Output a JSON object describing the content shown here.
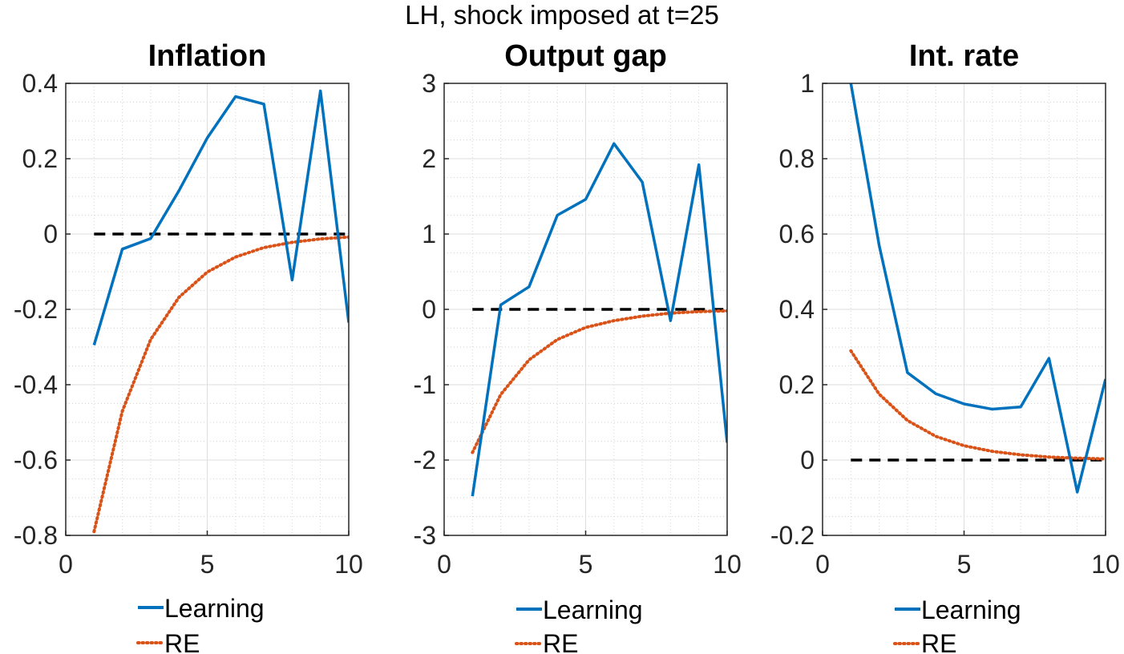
{
  "figure": {
    "suptitle": "LH, shock imposed at t=25"
  },
  "colors": {
    "learning": "#0072BD",
    "re": "#D95319",
    "zero_line": "#000000"
  },
  "chart_data": [
    {
      "type": "line",
      "title": "Inflation",
      "xlim": [
        0,
        10
      ],
      "ylim": [
        -0.8,
        0.4
      ],
      "xticks": [
        0,
        5,
        10
      ],
      "yticks": [
        -0.8,
        -0.6,
        -0.4,
        -0.2,
        0,
        0.2,
        0.4
      ],
      "ytick_labels": [
        "-0.8",
        "-0.6",
        "-0.4",
        "-0.2",
        "0",
        "0.2",
        "0.4"
      ],
      "grid": true,
      "legend": "below",
      "series": [
        {
          "name": "Learning",
          "style": "solid",
          "x": [
            1,
            2,
            3,
            4,
            5,
            6,
            7,
            8,
            9,
            10
          ],
          "values": [
            -0.295,
            -0.04,
            -0.012,
            0.115,
            0.255,
            0.365,
            0.345,
            -0.122,
            0.38,
            -0.235
          ]
        },
        {
          "name": "RE",
          "style": "dotted",
          "x": [
            1,
            2,
            3,
            4,
            5,
            6,
            7,
            8,
            9,
            10
          ],
          "values": [
            -0.79,
            -0.47,
            -0.28,
            -0.168,
            -0.101,
            -0.061,
            -0.036,
            -0.022,
            -0.013,
            -0.008
          ]
        },
        {
          "name": "",
          "style": "dashed",
          "x": [
            1,
            10
          ],
          "values": [
            0,
            0
          ]
        }
      ]
    },
    {
      "type": "line",
      "title": "Output gap",
      "xlim": [
        0,
        10
      ],
      "ylim": [
        -3,
        3
      ],
      "xticks": [
        0,
        5,
        10
      ],
      "yticks": [
        -3,
        -2,
        -1,
        0,
        1,
        2,
        3
      ],
      "ytick_labels": [
        "-3",
        "-2",
        "-1",
        "0",
        "1",
        "2",
        "3"
      ],
      "grid": true,
      "legend": "below",
      "series": [
        {
          "name": "Learning",
          "style": "solid",
          "x": [
            1,
            2,
            3,
            4,
            5,
            6,
            7,
            8,
            9,
            10
          ],
          "values": [
            -2.48,
            0.06,
            0.3,
            1.25,
            1.46,
            2.2,
            1.69,
            -0.15,
            1.92,
            -1.77
          ]
        },
        {
          "name": "RE",
          "style": "dotted",
          "x": [
            1,
            2,
            3,
            4,
            5,
            6,
            7,
            8,
            9,
            10
          ],
          "values": [
            -1.9,
            -1.13,
            -0.67,
            -0.4,
            -0.24,
            -0.15,
            -0.09,
            -0.05,
            -0.03,
            -0.02
          ]
        },
        {
          "name": "",
          "style": "dashed",
          "x": [
            1,
            10
          ],
          "values": [
            0,
            0
          ]
        }
      ]
    },
    {
      "type": "line",
      "title": "Int. rate",
      "xlim": [
        0,
        10
      ],
      "ylim": [
        -0.2,
        1
      ],
      "xticks": [
        0,
        5,
        10
      ],
      "yticks": [
        -0.2,
        0,
        0.2,
        0.4,
        0.6,
        0.8,
        1
      ],
      "ytick_labels": [
        "-0.2",
        "0",
        "0.2",
        "0.4",
        "0.6",
        "0.8",
        "1"
      ],
      "grid": true,
      "legend": "below",
      "series": [
        {
          "name": "Learning",
          "style": "solid",
          "x": [
            1,
            2,
            3,
            4,
            5,
            6,
            7,
            8,
            9,
            10
          ],
          "values": [
            1.0,
            0.57,
            0.232,
            0.176,
            0.149,
            0.135,
            0.141,
            0.27,
            -0.085,
            0.215
          ]
        },
        {
          "name": "RE",
          "style": "dotted",
          "x": [
            1,
            2,
            3,
            4,
            5,
            6,
            7,
            8,
            9,
            10
          ],
          "values": [
            0.29,
            0.175,
            0.105,
            0.063,
            0.038,
            0.023,
            0.014,
            0.008,
            0.005,
            0.003
          ]
        },
        {
          "name": "",
          "style": "dashed",
          "x": [
            1,
            10
          ],
          "values": [
            0,
            0
          ]
        }
      ]
    }
  ],
  "legend": {
    "learning_label": "Learning",
    "re_label": "RE"
  }
}
